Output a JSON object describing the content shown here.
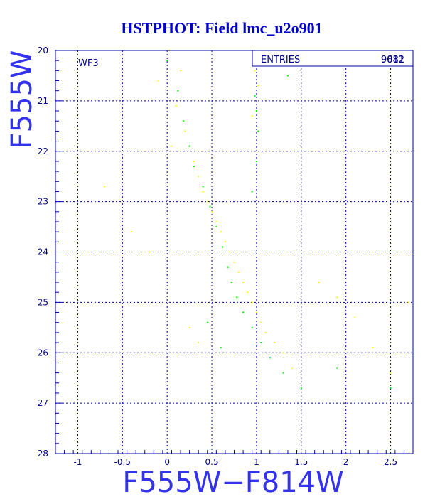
{
  "chart_data": {
    "type": "scatter",
    "title": "HSTPHOT: Field lmc_u2o901",
    "xlabel": "F555W−F814W",
    "ylabel": "F555W",
    "xlim": [
      -1.25,
      2.75
    ],
    "ylim": [
      28,
      20
    ],
    "y_inverted": true,
    "x_ticks": [
      "-1",
      "-0.5",
      "0",
      "0.5",
      "1",
      "1.5",
      "2",
      "2.5"
    ],
    "y_ticks": [
      "20",
      "21",
      "22",
      "23",
      "24",
      "25",
      "26",
      "27",
      "28"
    ],
    "grid": true,
    "panel_label": "WF3",
    "stats_box": {
      "label": "ENTRIES",
      "values": [
        "9681",
        "9012"
      ]
    },
    "series": [
      {
        "color": "#ffff00",
        "points": [
          [
            0.02,
            20.0
          ],
          [
            0.15,
            20.4
          ],
          [
            -0.1,
            20.6
          ],
          [
            0.1,
            21.1
          ],
          [
            0.2,
            21.6
          ],
          [
            0.05,
            21.9
          ],
          [
            0.3,
            22.2
          ],
          [
            0.35,
            22.5
          ],
          [
            0.4,
            22.8
          ],
          [
            0.45,
            23.0
          ],
          [
            0.5,
            23.2
          ],
          [
            0.55,
            23.4
          ],
          [
            0.6,
            23.6
          ],
          [
            0.65,
            23.8
          ],
          [
            0.7,
            24.0
          ],
          [
            0.75,
            24.2
          ],
          [
            0.8,
            24.4
          ],
          [
            0.85,
            24.6
          ],
          [
            0.9,
            24.8
          ],
          [
            0.95,
            25.0
          ],
          [
            1.0,
            25.2
          ],
          [
            1.05,
            25.4
          ],
          [
            1.1,
            25.6
          ],
          [
            1.2,
            25.8
          ],
          [
            1.3,
            26.0
          ],
          [
            1.4,
            26.3
          ],
          [
            0.25,
            25.5
          ],
          [
            0.35,
            25.8
          ],
          [
            -0.2,
            24.0
          ],
          [
            -0.4,
            23.6
          ],
          [
            -0.7,
            22.7
          ],
          [
            1.7,
            24.6
          ],
          [
            1.9,
            24.9
          ],
          [
            2.1,
            25.3
          ],
          [
            2.3,
            25.9
          ],
          [
            2.5,
            26.4
          ],
          [
            2.7,
            25.0
          ],
          [
            0.98,
            20.4
          ],
          [
            1.02,
            20.7
          ],
          [
            0.95,
            21.3
          ]
        ]
      },
      {
        "color": "#00ee00",
        "points": [
          [
            0.0,
            20.2
          ],
          [
            0.12,
            20.8
          ],
          [
            0.18,
            21.4
          ],
          [
            0.25,
            21.9
          ],
          [
            0.3,
            22.3
          ],
          [
            0.4,
            22.7
          ],
          [
            0.48,
            23.1
          ],
          [
            0.55,
            23.5
          ],
          [
            0.62,
            23.9
          ],
          [
            0.68,
            24.3
          ],
          [
            0.72,
            24.6
          ],
          [
            0.78,
            24.9
          ],
          [
            0.85,
            25.2
          ],
          [
            0.95,
            25.5
          ],
          [
            1.05,
            25.8
          ],
          [
            1.15,
            26.1
          ],
          [
            1.3,
            26.4
          ],
          [
            1.5,
            26.7
          ],
          [
            0.45,
            25.4
          ],
          [
            0.6,
            25.9
          ],
          [
            0.98,
            20.9
          ],
          [
            1.0,
            21.2
          ],
          [
            1.02,
            21.6
          ],
          [
            1.0,
            22.2
          ],
          [
            0.95,
            22.8
          ],
          [
            1.9,
            26.3
          ],
          [
            2.5,
            26.7
          ],
          [
            1.35,
            20.5
          ]
        ]
      }
    ]
  }
}
